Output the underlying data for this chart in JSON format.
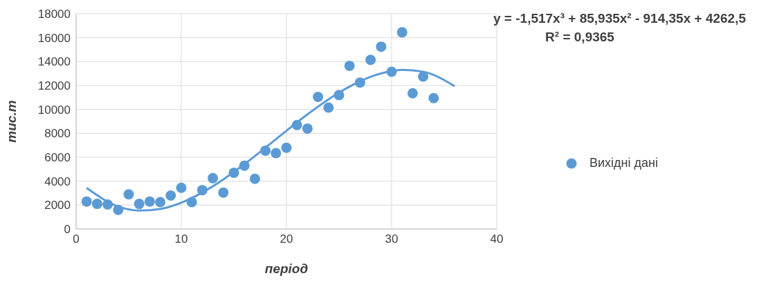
{
  "chart_data": {
    "type": "scatter",
    "xlabel": "період",
    "ylabel": "тис.т",
    "xlim": [
      0,
      40
    ],
    "xticks": [
      0,
      10,
      20,
      30,
      40
    ],
    "ylim": [
      0,
      18000
    ],
    "yticks": [
      0,
      2000,
      4000,
      6000,
      8000,
      10000,
      12000,
      14000,
      16000,
      18000
    ],
    "grid": true,
    "legend": "right",
    "marker": "circle",
    "annotations": [
      "y = -1,517x³ + 85,935x² - 914,35x + 4262,5",
      "R² = 0,9365"
    ],
    "series": [
      {
        "name": "Вихідні дані",
        "color": "#5b9bd5",
        "x": [
          1,
          2,
          3,
          4,
          5,
          6,
          7,
          8,
          9,
          10,
          11,
          12,
          13,
          14,
          15,
          16,
          17,
          18,
          19,
          20,
          21,
          22,
          23,
          24,
          25,
          26,
          27,
          28,
          29,
          30,
          31,
          32,
          33,
          34
        ],
        "values": [
          2300,
          2100,
          2050,
          1600,
          2900,
          2100,
          2300,
          2250,
          2800,
          3450,
          2250,
          3250,
          4250,
          3050,
          4700,
          5300,
          4200,
          6550,
          6350,
          6800,
          8700,
          8400,
          11050,
          10150,
          11200,
          13650,
          12250,
          14150,
          15250,
          13150,
          16450,
          11350,
          12750,
          10950
        ]
      },
      {
        "type": "line",
        "color": "#5b9bd5",
        "marker": "none",
        "x": [
          1,
          4,
          6,
          8,
          10,
          13,
          16,
          19,
          22,
          25,
          28,
          30,
          31,
          33,
          34,
          36
        ],
        "values": [
          3430,
          1880,
          1540,
          1670,
          2200,
          3570,
          5420,
          7510,
          9590,
          11410,
          12730,
          13210,
          13310,
          13160,
          12890,
          11940
        ]
      }
    ]
  }
}
